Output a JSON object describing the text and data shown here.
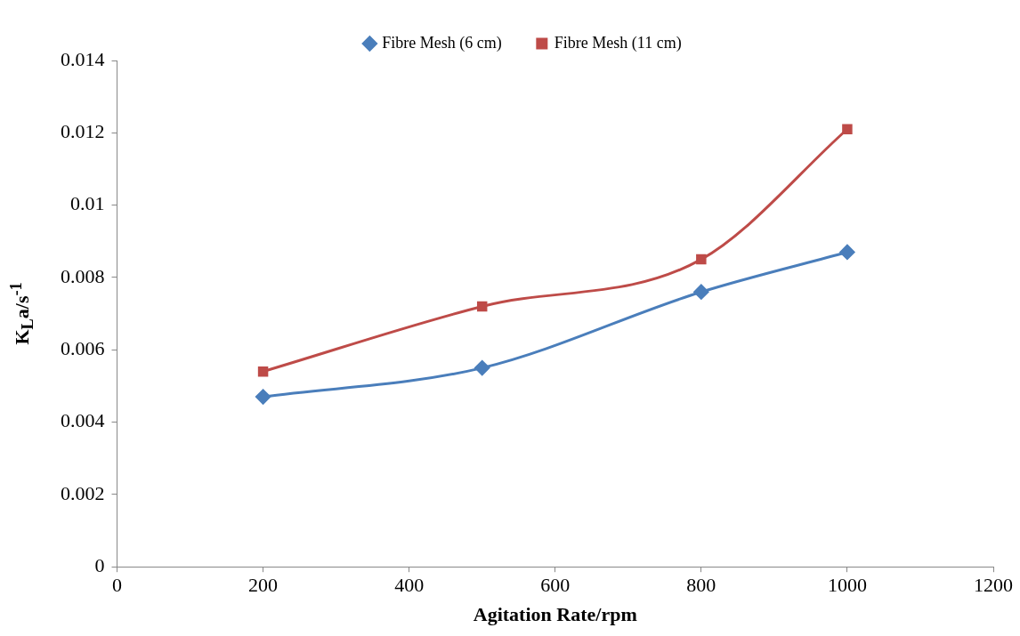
{
  "chart_data": {
    "type": "line",
    "xlabel": "Agitation Rate/rpm",
    "ylabel": "K$_{L}$a/s$^{-1}$",
    "x": [
      200,
      500,
      800,
      1000
    ],
    "series": [
      {
        "name": "Fibre Mesh (6 cm)",
        "color": "#4a7ebb",
        "marker": "diamond",
        "values": [
          0.0047,
          0.0055,
          0.0076,
          0.0087
        ]
      },
      {
        "name": "Fibre Mesh (11 cm)",
        "color": "#be4b48",
        "marker": "square",
        "values": [
          0.0054,
          0.0072,
          0.0085,
          0.0121
        ]
      }
    ],
    "xlim": [
      0,
      1200
    ],
    "xticks": [
      0,
      200,
      400,
      600,
      800,
      1000,
      1200
    ],
    "ylim": [
      0,
      0.014
    ],
    "yticks": [
      0,
      0.002,
      0.004,
      0.006,
      0.008,
      0.01,
      0.012,
      0.014
    ],
    "grid": false,
    "legend": "top"
  }
}
